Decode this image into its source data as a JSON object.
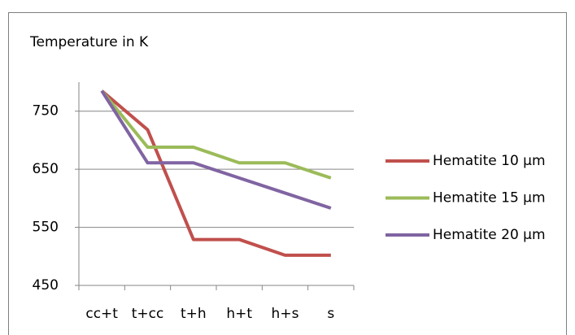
{
  "chart_data": {
    "type": "line",
    "title": "Temperature in K",
    "categories": [
      "cc+t",
      "t+cc",
      "t+h",
      "h+t",
      "h+s",
      "s"
    ],
    "series": [
      {
        "name": "Hematite 10 µm",
        "color": "#c0504d",
        "values": [
          785,
          718,
          529,
          529,
          502,
          502
        ]
      },
      {
        "name": "Hematite 15 µm",
        "color": "#9bbb59",
        "values": [
          785,
          688,
          688,
          661,
          661,
          635
        ]
      },
      {
        "name": "Hematite 20 µm",
        "color": "#8064a2",
        "values": [
          785,
          661,
          661,
          635,
          609,
          583
        ]
      }
    ],
    "ylim": [
      450,
      800
    ],
    "yticks": [
      450,
      550,
      650,
      750
    ],
    "grid": true,
    "legend": "right"
  }
}
